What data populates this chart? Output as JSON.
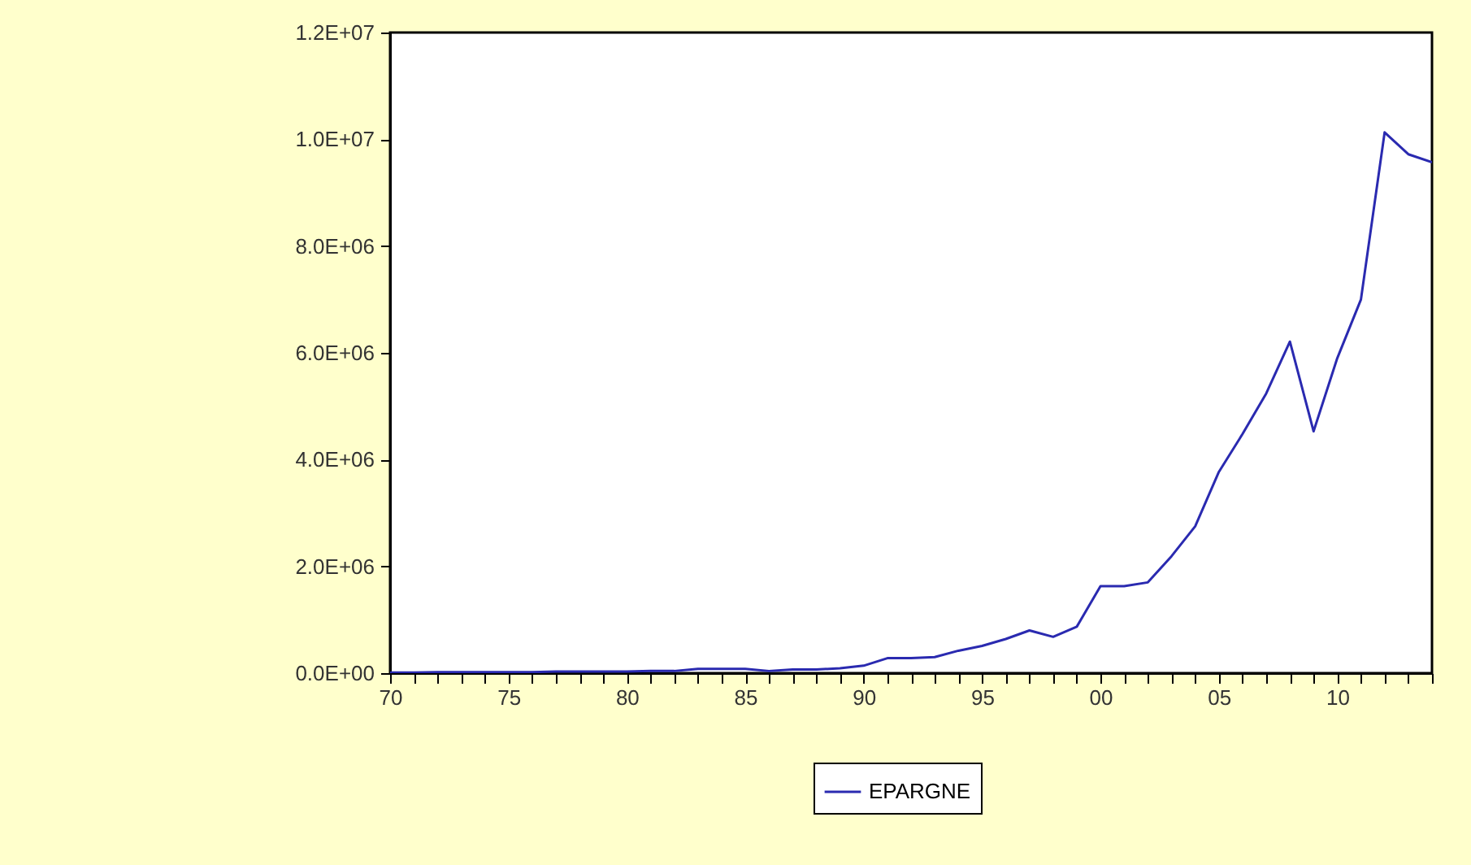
{
  "chart_data": {
    "type": "line",
    "x": [
      1970,
      1971,
      1972,
      1973,
      1974,
      1975,
      1976,
      1977,
      1978,
      1979,
      1980,
      1981,
      1982,
      1983,
      1984,
      1985,
      1986,
      1987,
      1988,
      1989,
      1990,
      1991,
      1992,
      1993,
      1994,
      1995,
      1996,
      1997,
      1998,
      1999,
      2000,
      2001,
      2002,
      2003,
      2004,
      2005,
      2006,
      2007,
      2008,
      2009,
      2010,
      2011,
      2012,
      2013,
      2014
    ],
    "series": [
      {
        "name": "EPARGNE",
        "color": "#2a2ab0",
        "values": [
          10000,
          10000,
          20000,
          20000,
          20000,
          20000,
          20000,
          30000,
          30000,
          30000,
          30000,
          40000,
          40000,
          80000,
          80000,
          80000,
          40000,
          70000,
          70000,
          90000,
          140000,
          280000,
          280000,
          300000,
          420000,
          510000,
          640000,
          800000,
          680000,
          870000,
          1630000,
          1630000,
          1700000,
          2190000,
          2750000,
          3770000,
          4480000,
          5240000,
          6210000,
          4530000,
          5900000,
          7000000,
          10130000,
          9720000,
          9570000
        ]
      }
    ],
    "xlim": [
      1970,
      2014
    ],
    "xticks": [
      {
        "value": 1970,
        "label": "70"
      },
      {
        "value": 1971,
        "label": null
      },
      {
        "value": 1972,
        "label": null
      },
      {
        "value": 1973,
        "label": null
      },
      {
        "value": 1974,
        "label": null
      },
      {
        "value": 1975,
        "label": "75"
      },
      {
        "value": 1976,
        "label": null
      },
      {
        "value": 1977,
        "label": null
      },
      {
        "value": 1978,
        "label": null
      },
      {
        "value": 1979,
        "label": null
      },
      {
        "value": 1980,
        "label": "80"
      },
      {
        "value": 1981,
        "label": null
      },
      {
        "value": 1982,
        "label": null
      },
      {
        "value": 1983,
        "label": null
      },
      {
        "value": 1984,
        "label": null
      },
      {
        "value": 1985,
        "label": "85"
      },
      {
        "value": 1986,
        "label": null
      },
      {
        "value": 1987,
        "label": null
      },
      {
        "value": 1988,
        "label": null
      },
      {
        "value": 1989,
        "label": null
      },
      {
        "value": 1990,
        "label": "90"
      },
      {
        "value": 1991,
        "label": null
      },
      {
        "value": 1992,
        "label": null
      },
      {
        "value": 1993,
        "label": null
      },
      {
        "value": 1994,
        "label": null
      },
      {
        "value": 1995,
        "label": "95"
      },
      {
        "value": 1996,
        "label": null
      },
      {
        "value": 1997,
        "label": null
      },
      {
        "value": 1998,
        "label": null
      },
      {
        "value": 1999,
        "label": null
      },
      {
        "value": 2000,
        "label": "00"
      },
      {
        "value": 2001,
        "label": null
      },
      {
        "value": 2002,
        "label": null
      },
      {
        "value": 2003,
        "label": null
      },
      {
        "value": 2004,
        "label": null
      },
      {
        "value": 2005,
        "label": "05"
      },
      {
        "value": 2006,
        "label": null
      },
      {
        "value": 2007,
        "label": null
      },
      {
        "value": 2008,
        "label": null
      },
      {
        "value": 2009,
        "label": null
      },
      {
        "value": 2010,
        "label": "10"
      },
      {
        "value": 2011,
        "label": null
      },
      {
        "value": 2012,
        "label": null
      },
      {
        "value": 2013,
        "label": null
      },
      {
        "value": 2014,
        "label": null
      }
    ],
    "ylim": [
      0,
      12000000
    ],
    "yticks": [
      {
        "value": 0,
        "label": "0.0E+00"
      },
      {
        "value": 2000000,
        "label": "2.0E+06"
      },
      {
        "value": 4000000,
        "label": "4.0E+06"
      },
      {
        "value": 6000000,
        "label": "6.0E+06"
      },
      {
        "value": 8000000,
        "label": "8.0E+06"
      },
      {
        "value": 10000000,
        "label": "1.0E+07"
      },
      {
        "value": 12000000,
        "label": "1.2E+07"
      }
    ],
    "grid": false,
    "legend": "bottom",
    "marker": "none",
    "line_style": "solid"
  }
}
